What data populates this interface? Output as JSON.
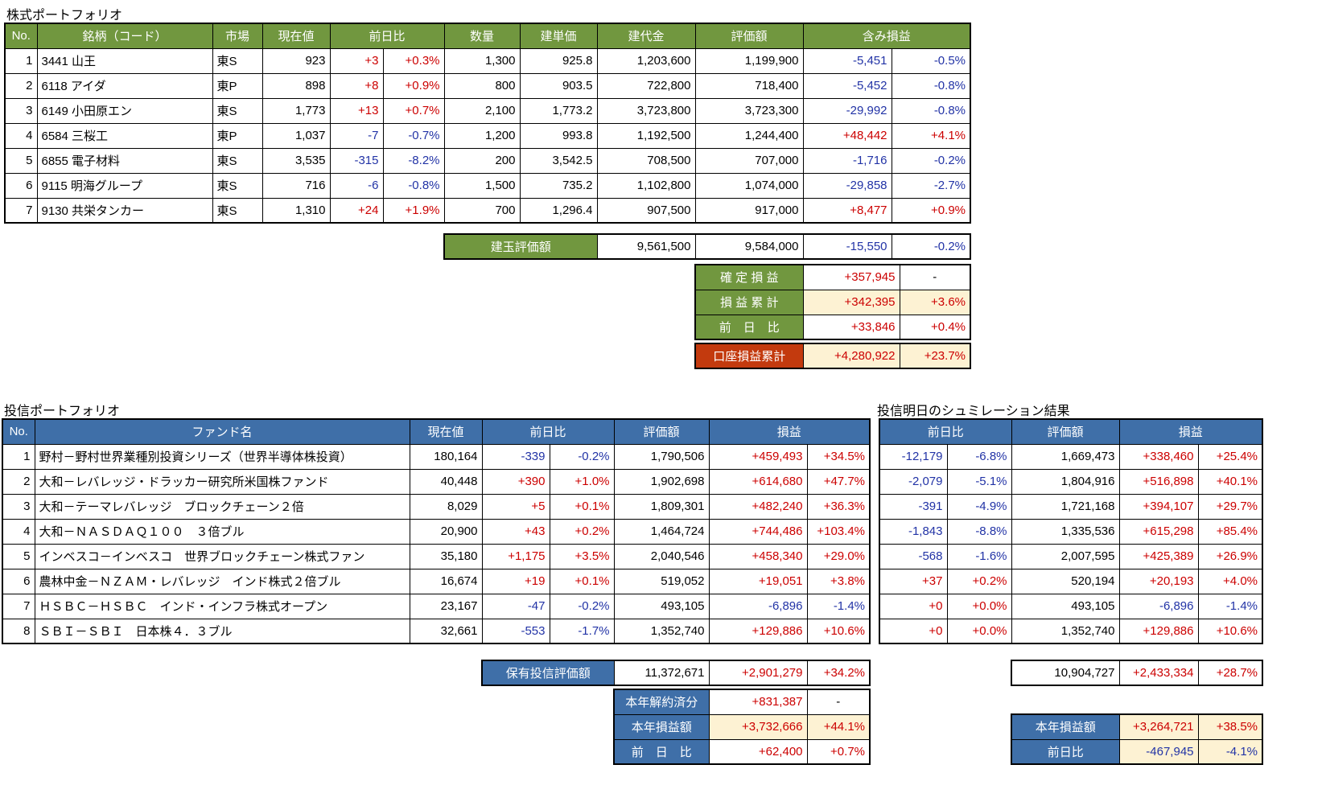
{
  "colors": {
    "green_header": "#71973F",
    "blue_header": "#3F6FA8",
    "red_label": "#C33A0E",
    "positive_text": "#CC0000",
    "negative_text": "#2233A6",
    "highlight_bg": "#FDF2D3"
  },
  "stock": {
    "title": "株式ポートフォリオ",
    "headers": {
      "no": "No.",
      "name": "銘柄（コード）",
      "market": "市場",
      "price": "現在値",
      "chg": "前日比",
      "qty": "数量",
      "unit": "建単価",
      "cost": "建代金",
      "value": "評価額",
      "pl": "含み損益"
    },
    "rows": [
      {
        "no": "1",
        "name": "3441 山王",
        "market": "東S",
        "price": "923",
        "chg": "+3",
        "chg_pct": "+0.3%",
        "qty": "1,300",
        "unit": "925.8",
        "cost": "1,203,600",
        "value": "1,199,900",
        "pl": "-5,451",
        "pl_pct": "-0.5%"
      },
      {
        "no": "2",
        "name": "6118 アイダ",
        "market": "東P",
        "price": "898",
        "chg": "+8",
        "chg_pct": "+0.9%",
        "qty": "800",
        "unit": "903.5",
        "cost": "722,800",
        "value": "718,400",
        "pl": "-5,452",
        "pl_pct": "-0.8%"
      },
      {
        "no": "3",
        "name": "6149 小田原エン",
        "market": "東S",
        "price": "1,773",
        "chg": "+13",
        "chg_pct": "+0.7%",
        "qty": "2,100",
        "unit": "1,773.2",
        "cost": "3,723,800",
        "value": "3,723,300",
        "pl": "-29,992",
        "pl_pct": "-0.8%"
      },
      {
        "no": "4",
        "name": "6584 三桜工",
        "market": "東P",
        "price": "1,037",
        "chg": "-7",
        "chg_pct": "-0.7%",
        "qty": "1,200",
        "unit": "993.8",
        "cost": "1,192,500",
        "value": "1,244,400",
        "pl": "+48,442",
        "pl_pct": "+4.1%"
      },
      {
        "no": "5",
        "name": "6855 電子材料",
        "market": "東S",
        "price": "3,535",
        "chg": "-315",
        "chg_pct": "-8.2%",
        "qty": "200",
        "unit": "3,542.5",
        "cost": "708,500",
        "value": "707,000",
        "pl": "-1,716",
        "pl_pct": "-0.2%"
      },
      {
        "no": "6",
        "name": "9115 明海グループ",
        "market": "東S",
        "price": "716",
        "chg": "-6",
        "chg_pct": "-0.8%",
        "qty": "1,500",
        "unit": "735.2",
        "cost": "1,102,800",
        "value": "1,074,000",
        "pl": "-29,858",
        "pl_pct": "-2.7%"
      },
      {
        "no": "7",
        "name": "9130 共栄タンカー",
        "market": "東S",
        "price": "1,310",
        "chg": "+24",
        "chg_pct": "+1.9%",
        "qty": "700",
        "unit": "1,296.4",
        "cost": "907,500",
        "value": "917,000",
        "pl": "+8,477",
        "pl_pct": "+0.9%"
      }
    ],
    "summary": {
      "label": "建玉評価額",
      "cost": "9,561,500",
      "value": "9,584,000",
      "pl": "-15,550",
      "pl_pct": "-0.2%"
    },
    "stats": [
      {
        "label": "確 定 損 益",
        "value": "+357,945",
        "pct": "-"
      },
      {
        "label": "損 益 累 計",
        "value": "+342,395",
        "pct": "+3.6%"
      },
      {
        "label": "前　日　比",
        "value": "+33,846",
        "pct": "+0.4%"
      }
    ],
    "account": {
      "label": "口座損益累計",
      "value": "+4,280,922",
      "pct": "+23.7%"
    }
  },
  "fund": {
    "title": "投信ポートフォリオ",
    "headers": {
      "no": "No.",
      "name": "ファンド名",
      "price": "現在値",
      "chg": "前日比",
      "value": "評価額",
      "pl": "損益"
    },
    "rows": [
      {
        "no": "1",
        "name": "野村－野村世界業種別投資シリーズ（世界半導体株投資）",
        "price": "180,164",
        "chg": "-339",
        "chg_pct": "-0.2%",
        "value": "1,790,506",
        "pl": "+459,493",
        "pl_pct": "+34.5%"
      },
      {
        "no": "2",
        "name": "大和－レバレッジ・ドラッカー研究所米国株ファンド",
        "price": "40,448",
        "chg": "+390",
        "chg_pct": "+1.0%",
        "value": "1,902,698",
        "pl": "+614,680",
        "pl_pct": "+47.7%"
      },
      {
        "no": "3",
        "name": "大和－テーマレバレッジ　ブロックチェーン２倍",
        "price": "8,029",
        "chg": "+5",
        "chg_pct": "+0.1%",
        "value": "1,809,301",
        "pl": "+482,240",
        "pl_pct": "+36.3%"
      },
      {
        "no": "4",
        "name": "大和－ＮＡＳＤＡＱ１００　３倍ブル",
        "price": "20,900",
        "chg": "+43",
        "chg_pct": "+0.2%",
        "value": "1,464,724",
        "pl": "+744,486",
        "pl_pct": "+103.4%"
      },
      {
        "no": "5",
        "name": "インベスコ－インベスコ　世界ブロックチェーン株式ファン",
        "price": "35,180",
        "chg": "+1,175",
        "chg_pct": "+3.5%",
        "value": "2,040,546",
        "pl": "+458,340",
        "pl_pct": "+29.0%"
      },
      {
        "no": "6",
        "name": "農林中金－ＮＺＡＭ・レバレッジ　インド株式２倍ブル",
        "price": "16,674",
        "chg": "+19",
        "chg_pct": "+0.1%",
        "value": "519,052",
        "pl": "+19,051",
        "pl_pct": "+3.8%"
      },
      {
        "no": "7",
        "name": "ＨＳＢＣ－ＨＳＢＣ　インド・インフラ株式オープン",
        "price": "23,167",
        "chg": "-47",
        "chg_pct": "-0.2%",
        "value": "493,105",
        "pl": "-6,896",
        "pl_pct": "-1.4%"
      },
      {
        "no": "8",
        "name": "ＳＢＩ－ＳＢＩ　日本株４．３ブル",
        "price": "32,661",
        "chg": "-553",
        "chg_pct": "-1.7%",
        "value": "1,352,740",
        "pl": "+129,886",
        "pl_pct": "+10.6%"
      }
    ],
    "summary": {
      "label": "保有投信評価額",
      "value": "11,372,671",
      "pl": "+2,901,279",
      "pl_pct": "+34.2%"
    },
    "stats": [
      {
        "label": "本年解約済分",
        "value": "+831,387",
        "pct": "-"
      },
      {
        "label": "本年損益額",
        "value": "+3,732,666",
        "pct": "+44.1%"
      },
      {
        "label": "前　日　比",
        "value": "+62,400",
        "pct": "+0.7%"
      }
    ]
  },
  "sim": {
    "title": "投信明日のシュミレーション結果",
    "headers": {
      "chg": "前日比",
      "value": "評価額",
      "pl": "損益"
    },
    "rows": [
      {
        "chg": "-12,179",
        "chg_pct": "-6.8%",
        "value": "1,669,473",
        "pl": "+338,460",
        "pl_pct": "+25.4%"
      },
      {
        "chg": "-2,079",
        "chg_pct": "-5.1%",
        "value": "1,804,916",
        "pl": "+516,898",
        "pl_pct": "+40.1%"
      },
      {
        "chg": "-391",
        "chg_pct": "-4.9%",
        "value": "1,721,168",
        "pl": "+394,107",
        "pl_pct": "+29.7%"
      },
      {
        "chg": "-1,843",
        "chg_pct": "-8.8%",
        "value": "1,335,536",
        "pl": "+615,298",
        "pl_pct": "+85.4%"
      },
      {
        "chg": "-568",
        "chg_pct": "-1.6%",
        "value": "2,007,595",
        "pl": "+425,389",
        "pl_pct": "+26.9%"
      },
      {
        "chg": "+37",
        "chg_pct": "+0.2%",
        "value": "520,194",
        "pl": "+20,193",
        "pl_pct": "+4.0%"
      },
      {
        "chg": "+0",
        "chg_pct": "+0.0%",
        "value": "493,105",
        "pl": "-6,896",
        "pl_pct": "-1.4%"
      },
      {
        "chg": "+0",
        "chg_pct": "+0.0%",
        "value": "1,352,740",
        "pl": "+129,886",
        "pl_pct": "+10.6%"
      }
    ],
    "summary": {
      "value": "10,904,727",
      "pl": "+2,433,334",
      "pl_pct": "+28.7%"
    },
    "stats": [
      {
        "label": "本年損益額",
        "value": "+3,264,721",
        "pct": "+38.5%"
      },
      {
        "label": "前日比",
        "value": "-467,945",
        "pct": "-4.1%"
      }
    ]
  }
}
